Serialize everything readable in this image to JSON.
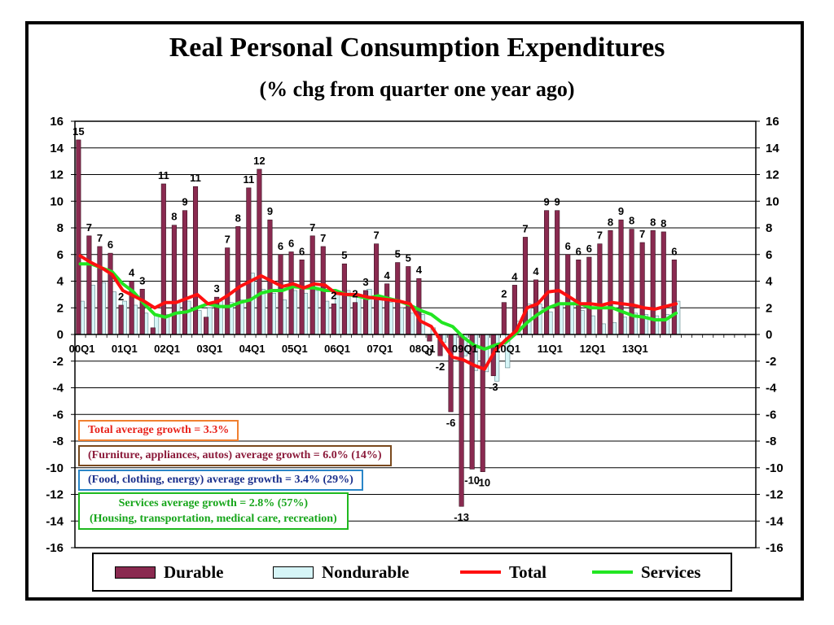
{
  "title": "Real Personal Consumption Expenditures",
  "subtitle": "(% chg from quarter one year ago)",
  "colors": {
    "durable": "#8a2a50",
    "nondurable": "#d6f5f7",
    "total": "#ff1010",
    "services": "#22e622"
  },
  "notes": {
    "total": "Total average growth = 3.3%",
    "durable": "(Furniture, appliances, autos) average growth = 6.0% (14%)",
    "nondurable": "(Food, clothing, energy) average growth = 3.4% (29%)",
    "services_line1": "Services average growth = 2.8% (57%)",
    "services_line2": "(Housing, transportation, medical care, recreation)"
  },
  "legend": {
    "durable": "Durable",
    "nondurable": "Nondurable",
    "total": "Total",
    "services": "Services"
  },
  "chart_data": {
    "type": "bar",
    "title": "Real Personal Consumption Expenditures",
    "subtitle": "(% chg from quarter one year ago)",
    "ylim": [
      -16,
      16
    ],
    "yticks": [
      -16,
      -14,
      -12,
      -10,
      -8,
      -6,
      -4,
      -2,
      0,
      2,
      4,
      6,
      8,
      10,
      12,
      14,
      16
    ],
    "grid": true,
    "category_labels": [
      {
        "label": "00Q1",
        "index": 0
      },
      {
        "label": "01Q1",
        "index": 4
      },
      {
        "label": "02Q1",
        "index": 8
      },
      {
        "label": "03Q1",
        "index": 12
      },
      {
        "label": "04Q1",
        "index": 16
      },
      {
        "label": "05Q1",
        "index": 20
      },
      {
        "label": "06Q1",
        "index": 24
      },
      {
        "label": "07Q1",
        "index": 28
      },
      {
        "label": "08Q1",
        "index": 32
      },
      {
        "label": "09Q1",
        "index": 36
      },
      {
        "label": "10Q1",
        "index": 40
      },
      {
        "label": "11Q1",
        "index": 44
      },
      {
        "label": "12Q1",
        "index": 48
      },
      {
        "label": "13Q1",
        "index": 52
      }
    ],
    "series": [
      {
        "name": "Durable",
        "type": "bar",
        "values": [
          14.6,
          7.4,
          6.6,
          6.1,
          2.2,
          4.0,
          3.4,
          0.5,
          11.3,
          8.2,
          9.3,
          11.1,
          1.3,
          2.8,
          6.5,
          8.1,
          11.0,
          12.4,
          8.6,
          6.0,
          6.2,
          5.6,
          7.4,
          6.6,
          2.3,
          5.3,
          2.4,
          3.3,
          6.8,
          3.8,
          5.4,
          5.1,
          4.2,
          -0.5,
          -1.6,
          -5.8,
          -12.9,
          -10.1,
          -10.3,
          -3.1,
          2.4,
          3.7,
          7.3,
          4.1,
          9.3,
          9.3,
          6.0,
          5.6,
          5.8,
          6.8,
          7.8,
          8.6,
          7.9,
          6.9,
          7.8,
          7.7,
          5.6
        ]
      },
      {
        "name": "Nondurable",
        "type": "bar",
        "values": [
          2.5,
          3.7,
          3.9,
          3.2,
          2.5,
          2.2,
          1.6,
          1.5,
          1.5,
          2.4,
          2.5,
          1.8,
          2.0,
          2.5,
          2.4,
          2.6,
          4.6,
          3.4,
          3.1,
          2.6,
          3.3,
          3.1,
          3.3,
          2.5,
          3.0,
          3.3,
          3.0,
          3.4,
          2.7,
          2.4,
          2.0,
          1.6,
          1.5,
          0.5,
          -0.6,
          -1.3,
          -1.6,
          -2.7,
          -2.8,
          -3.5,
          -2.5,
          1.0,
          2.3,
          2.3,
          1.7,
          2.3,
          2.7,
          1.8,
          1.4,
          0.8,
          0.9,
          1.3,
          1.6,
          1.5,
          1.4,
          1.5,
          2.5
        ]
      },
      {
        "name": "Total",
        "type": "line",
        "values": [
          5.9,
          5.4,
          5.0,
          4.5,
          3.3,
          2.9,
          2.5,
          2.0,
          2.4,
          2.4,
          2.7,
          3.0,
          2.3,
          2.5,
          3.0,
          3.6,
          4.0,
          4.4,
          4.0,
          3.6,
          3.8,
          3.5,
          3.8,
          3.7,
          3.1,
          3.0,
          3.0,
          2.8,
          2.7,
          2.6,
          2.5,
          2.3,
          1.0,
          0.6,
          -0.6,
          -1.7,
          -1.9,
          -2.3,
          -2.6,
          -1.2,
          -0.4,
          0.3,
          2.0,
          2.3,
          3.2,
          3.3,
          2.8,
          2.3,
          2.3,
          2.2,
          2.4,
          2.3,
          2.2,
          2.0,
          1.9,
          2.1,
          2.3
        ]
      },
      {
        "name": "Services",
        "type": "line",
        "values": [
          5.3,
          5.3,
          5.0,
          4.7,
          3.8,
          3.2,
          2.3,
          1.5,
          1.3,
          1.6,
          1.7,
          2.0,
          2.3,
          2.1,
          2.1,
          2.4,
          2.6,
          3.1,
          3.3,
          3.3,
          3.6,
          3.5,
          3.5,
          3.3,
          3.3,
          3.0,
          2.9,
          2.7,
          2.9,
          2.7,
          2.5,
          2.2,
          1.8,
          1.5,
          0.9,
          0.6,
          -0.2,
          -0.8,
          -1.1,
          -0.8,
          -0.6,
          0.1,
          0.9,
          1.5,
          2.0,
          2.3,
          2.3,
          2.3,
          2.0,
          2.0,
          2.0,
          1.7,
          1.4,
          1.3,
          1.1,
          1.1,
          1.6
        ]
      }
    ],
    "durable_labels": [
      {
        "index": 0,
        "text": "15"
      },
      {
        "index": 1,
        "text": "7"
      },
      {
        "index": 2,
        "text": "7"
      },
      {
        "index": 3,
        "text": "6"
      },
      {
        "index": 4,
        "text": "2"
      },
      {
        "index": 5,
        "text": "4"
      },
      {
        "index": 6,
        "text": "3"
      },
      {
        "index": 8,
        "text": "11"
      },
      {
        "index": 9,
        "text": "8"
      },
      {
        "index": 10,
        "text": "9"
      },
      {
        "index": 11,
        "text": "11"
      },
      {
        "index": 13,
        "text": "3"
      },
      {
        "index": 14,
        "text": "7"
      },
      {
        "index": 15,
        "text": "8"
      },
      {
        "index": 16,
        "text": "11"
      },
      {
        "index": 17,
        "text": "12"
      },
      {
        "index": 18,
        "text": "9"
      },
      {
        "index": 19,
        "text": "6"
      },
      {
        "index": 20,
        "text": "6"
      },
      {
        "index": 21,
        "text": "6"
      },
      {
        "index": 22,
        "text": "7"
      },
      {
        "index": 23,
        "text": "7"
      },
      {
        "index": 24,
        "text": "2"
      },
      {
        "index": 25,
        "text": "5"
      },
      {
        "index": 26,
        "text": "2"
      },
      {
        "index": 27,
        "text": "3"
      },
      {
        "index": 28,
        "text": "7"
      },
      {
        "index": 29,
        "text": "4"
      },
      {
        "index": 30,
        "text": "5"
      },
      {
        "index": 31,
        "text": "5"
      },
      {
        "index": 32,
        "text": "4"
      },
      {
        "index": 33,
        "text": "0"
      },
      {
        "index": 34,
        "text": "-2"
      },
      {
        "index": 35,
        "text": "-6"
      },
      {
        "index": 36,
        "text": "-13"
      },
      {
        "index": 37,
        "text": "-10"
      },
      {
        "index": 38,
        "text": "-10"
      },
      {
        "index": 39,
        "text": "-3"
      },
      {
        "index": 40,
        "text": "2"
      },
      {
        "index": 41,
        "text": "4"
      },
      {
        "index": 42,
        "text": "7"
      },
      {
        "index": 43,
        "text": "4"
      },
      {
        "index": 44,
        "text": "9"
      },
      {
        "index": 45,
        "text": "9"
      },
      {
        "index": 46,
        "text": "6"
      },
      {
        "index": 47,
        "text": "6"
      },
      {
        "index": 48,
        "text": "6"
      },
      {
        "index": 49,
        "text": "7"
      },
      {
        "index": 50,
        "text": "8"
      },
      {
        "index": 51,
        "text": "9"
      },
      {
        "index": 52,
        "text": "8"
      },
      {
        "index": 53,
        "text": "7"
      },
      {
        "index": 54,
        "text": "8"
      },
      {
        "index": 55,
        "text": "8"
      },
      {
        "index": 56,
        "text": "6"
      }
    ]
  }
}
